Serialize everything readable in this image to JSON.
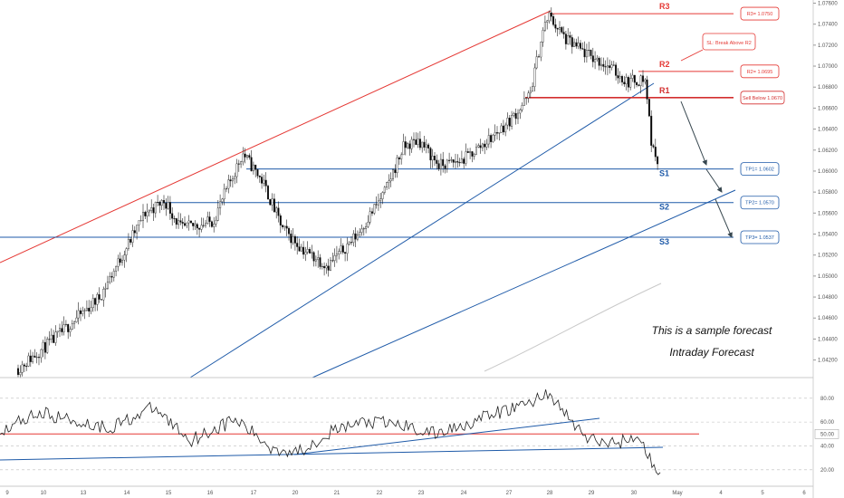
{
  "chart_data": {
    "type": "candlestick",
    "price_axis": {
      "range": [
        1.0405,
        1.0763
      ],
      "ticks": [
        "1.07600",
        "1.07400",
        "1.07200",
        "1.07000",
        "1.06800",
        "1.06600",
        "1.06400",
        "1.06200",
        "1.06000",
        "1.05800",
        "1.05600",
        "1.05400",
        "1.05200",
        "1.05000",
        "1.04800",
        "1.04600",
        "1.04400",
        "1.04200"
      ]
    },
    "time_axis": {
      "labels": [
        "9",
        "10",
        "13",
        "14",
        "15",
        "16",
        "17",
        "20",
        "21",
        "22",
        "23",
        "24",
        "27",
        "28",
        "29",
        "30",
        "May",
        "4",
        "5",
        "6"
      ]
    },
    "levels": [
      {
        "label": "R3",
        "price": 1.075,
        "color": "#e53935",
        "callout": "R3= 1.0750"
      },
      {
        "label": "R2",
        "price": 1.0695,
        "color": "#e53935",
        "callout": "R2= 1.0695"
      },
      {
        "label": "R1",
        "price": 1.067,
        "color": "#d32f2f",
        "callout": "Sell Below 1.0670"
      },
      {
        "label": "S1",
        "price": 1.0602,
        "color": "#1e5aa8",
        "callout": "TP1= 1.0602"
      },
      {
        "label": "S2",
        "price": 1.057,
        "color": "#1e5aa8",
        "callout": "TP2= 1.0570"
      },
      {
        "label": "S3",
        "price": 1.0537,
        "color": "#1e5aa8",
        "callout": "TP3= 1.0537"
      }
    ],
    "sl_note": "SL: Break Above R2",
    "annotations": [
      "This is a sample forecast",
      "Intraday Forecast"
    ],
    "oscillator": {
      "ticks": [
        "80.00",
        "60.00",
        "50.00",
        "40.00",
        "20.00"
      ],
      "range": [
        10,
        95
      ],
      "signal_level": 50
    },
    "colors": {
      "bull": "#2a2a2a",
      "bear": "#000000",
      "trend_red": "#e53935",
      "trend_blue": "#1e5aa8",
      "resistance": "#e53935",
      "support": "#1e5aa8"
    }
  }
}
